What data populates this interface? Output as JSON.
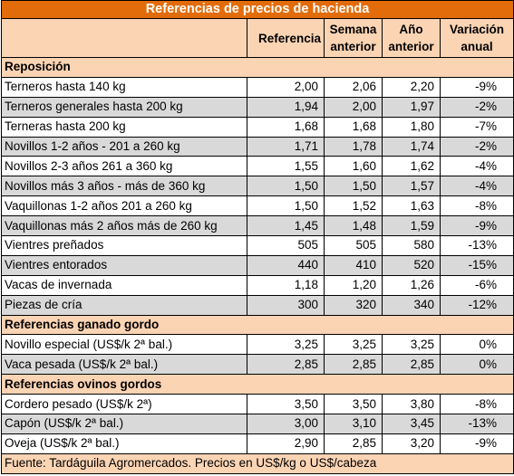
{
  "title": "Referencias de precios de hacienda",
  "headers": {
    "referencia": "Referencia",
    "semana_anterior": "Semana anterior",
    "anio_anterior": "Año anterior",
    "variacion_anual": "Variación anual"
  },
  "sections": [
    {
      "name": "Reposición",
      "rows": [
        {
          "label": "Terneros hasta 140 kg",
          "ref": "2,00",
          "sem": "2,06",
          "anio": "2,20",
          "var": "-9%"
        },
        {
          "label": "Terneros generales hasta 200 kg",
          "ref": "1,94",
          "sem": "2,00",
          "anio": "1,97",
          "var": "-2%"
        },
        {
          "label": "Terneras hasta 200 kg",
          "ref": "1,68",
          "sem": "1,68",
          "anio": "1,80",
          "var": "-7%"
        },
        {
          "label": "Novillos 1-2 años - 201 a 260 kg",
          "ref": "1,71",
          "sem": "1,78",
          "anio": "1,74",
          "var": "-2%"
        },
        {
          "label": "Novillos 2-3 años 261 a 360 kg",
          "ref": "1,55",
          "sem": "1,60",
          "anio": "1,62",
          "var": "-4%"
        },
        {
          "label": "Novillos más 3 años - más de 360 kg",
          "ref": "1,50",
          "sem": "1,50",
          "anio": "1,57",
          "var": "-4%"
        },
        {
          "label": "Vaquillonas 1-2 años 201 a 260 kg",
          "ref": "1,50",
          "sem": "1,52",
          "anio": "1,63",
          "var": "-8%"
        },
        {
          "label": "Vaquillonas más 2 años más de 260 kg",
          "ref": "1,45",
          "sem": "1,48",
          "anio": "1,59",
          "var": "-9%"
        },
        {
          "label": "Vientres preñados",
          "ref": "505",
          "sem": "505",
          "anio": "580",
          "var": "-13%"
        },
        {
          "label": "Vientres entorados",
          "ref": "440",
          "sem": "410",
          "anio": "520",
          "var": "-15%"
        },
        {
          "label": "Vacas de invernada",
          "ref": "1,18",
          "sem": "1,20",
          "anio": "1,26",
          "var": "-6%"
        },
        {
          "label": "Piezas de cría",
          "ref": "300",
          "sem": "320",
          "anio": "340",
          "var": "-12%"
        }
      ]
    },
    {
      "name": "Referencias ganado gordo",
      "rows": [
        {
          "label": "Novillo especial (US$/k 2ª bal.)",
          "ref": "3,25",
          "sem": "3,25",
          "anio": "3,25",
          "var": "0%"
        },
        {
          "label": "Vaca pesada (US$/k 2ª bal.)",
          "ref": "2,85",
          "sem": "2,85",
          "anio": "2,85",
          "var": "0%"
        }
      ]
    },
    {
      "name": "Referencias ovinos gordos",
      "rows": [
        {
          "label": "Cordero pesado (US$/k 2ª)",
          "ref": "3,50",
          "sem": "3,50",
          "anio": "3,80",
          "var": "-8%"
        },
        {
          "label": "Capón (US$/k 2ª bal.)",
          "ref": "3,00",
          "sem": "3,10",
          "anio": "3,45",
          "var": "-13%"
        },
        {
          "label": "Oveja (US$/k 2ª bal.)",
          "ref": "2,90",
          "sem": "2,85",
          "anio": "3,20",
          "var": "-9%"
        }
      ]
    }
  ],
  "footer": "Fuente: Tardáguila Agromercados. Precios en US$/kg o US$/cabeza",
  "colors": {
    "title_bg": "#e36c0a",
    "header_bg": "#fbd4b4",
    "row_shade": "#d9d9d9",
    "row_plain": "#ffffff"
  }
}
